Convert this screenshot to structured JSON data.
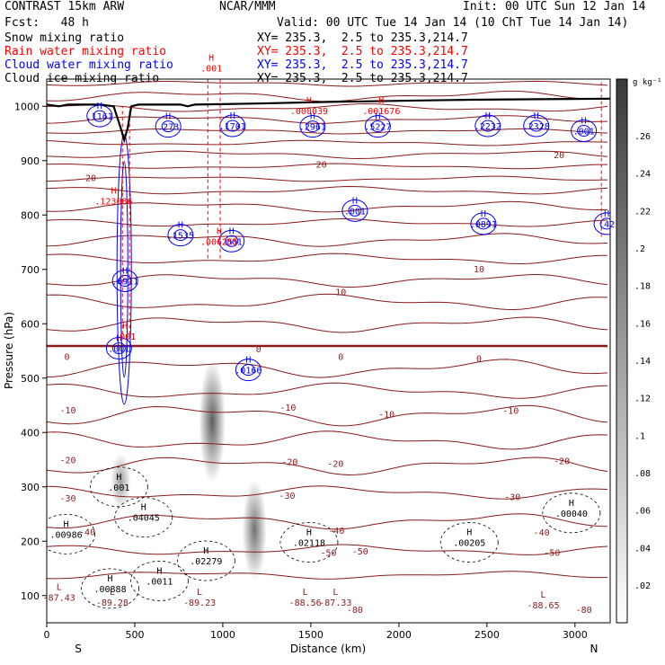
{
  "header": {
    "model": "CONTRAST 15km ARW",
    "center": "NCAR/MMM",
    "init": "Init: 00 UTC Sun 12 Jan 14",
    "fcst": "Fcst:   48 h",
    "valid": "Valid: 00 UTC Tue 14 Jan 14 (10 ChT Tue 14 Jan 14)"
  },
  "fields": [
    {
      "name": "Snow mixing ratio",
      "xy": "XY= 235.3,  2.5 to 235.3,214.7",
      "color": "#000000"
    },
    {
      "name": "Rain water mixing ratio",
      "xy": "XY= 235.3,  2.5 to 235.3,214.7",
      "color": "#ff0000"
    },
    {
      "name": "Cloud water mixing ratio",
      "xy": "XY= 235.3,  2.5 to 235.3,214.7",
      "color": "#0000ff"
    },
    {
      "name": "Cloud ice mixing ratio",
      "xy": "XY= 235.3,  2.5 to 235.3,214.7",
      "color": "#000000"
    }
  ],
  "colorbar": {
    "unit": "g kg⁻¹",
    "ticks": [
      ".26",
      ".24",
      ".22",
      ".2",
      ".18",
      ".16",
      ".14",
      ".12",
      ".1",
      ".08",
      ".06",
      ".04",
      ".02"
    ]
  },
  "chart_data": {
    "type": "heatmap",
    "xlabel": "Distance (km)",
    "ylabel": "Pressure (hPa)",
    "xlim": [
      0,
      3200
    ],
    "ylim": [
      1050,
      50
    ],
    "x_ticks": [
      "0",
      "500",
      "1000",
      "1500",
      "2000",
      "2500",
      "3000"
    ],
    "y_ticks": [
      "100",
      "200",
      "300",
      "400",
      "500",
      "600",
      "700",
      "800",
      "900",
      "1000"
    ],
    "x_end_labels": {
      "left": "S",
      "right": "N"
    },
    "shading_field": "Cloud ice mixing ratio",
    "ice_cells": [
      {
        "x": 1180,
        "p": 220,
        "value": 0.12
      },
      {
        "x": 940,
        "p": 420,
        "value": 0.16
      },
      {
        "x": 420,
        "p": 310,
        "value": 0.04
      }
    ],
    "temperature_labels": [
      {
        "x": 1750,
        "p": 75,
        "value": "-80"
      },
      {
        "x": 3050,
        "p": 75,
        "value": "-80"
      },
      {
        "x": 1600,
        "p": 180,
        "value": "-50"
      },
      {
        "x": 1780,
        "p": 182,
        "value": "-50"
      },
      {
        "x": 2870,
        "p": 180,
        "value": "-50"
      },
      {
        "x": 230,
        "p": 218,
        "value": "-40"
      },
      {
        "x": 1645,
        "p": 220,
        "value": "-40"
      },
      {
        "x": 2810,
        "p": 217,
        "value": "-40"
      },
      {
        "x": 120,
        "p": 280,
        "value": "-30"
      },
      {
        "x": 1365,
        "p": 285,
        "value": "-30"
      },
      {
        "x": 2645,
        "p": 282,
        "value": "-30"
      },
      {
        "x": 120,
        "p": 350,
        "value": "-20"
      },
      {
        "x": 1380,
        "p": 347,
        "value": "-20"
      },
      {
        "x": 1640,
        "p": 343,
        "value": "-20"
      },
      {
        "x": 2925,
        "p": 348,
        "value": "-20"
      },
      {
        "x": 120,
        "p": 442,
        "value": "-10"
      },
      {
        "x": 1370,
        "p": 447,
        "value": "-10"
      },
      {
        "x": 1930,
        "p": 434,
        "value": "-10"
      },
      {
        "x": 2635,
        "p": 441,
        "value": "-10"
      },
      {
        "x": 115,
        "p": 540,
        "value": "0"
      },
      {
        "x": 1203,
        "p": 554,
        "value": "0"
      },
      {
        "x": 1670,
        "p": 540,
        "value": "0"
      },
      {
        "x": 2455,
        "p": 537,
        "value": "0"
      },
      {
        "x": 1670,
        "p": 659,
        "value": "10"
      },
      {
        "x": 2455,
        "p": 701,
        "value": "10"
      },
      {
        "x": 250,
        "p": 869,
        "value": "20"
      },
      {
        "x": 1560,
        "p": 894,
        "value": "20"
      },
      {
        "x": 2910,
        "p": 911,
        "value": "20"
      }
    ],
    "minima": [
      {
        "x": 372,
        "p": 88,
        "value": "-89.28"
      },
      {
        "x": 868,
        "p": 88,
        "value": "-89.23"
      },
      {
        "x": 1468,
        "p": 88,
        "value": "-88.56"
      },
      {
        "x": 1640,
        "p": 88,
        "value": "-87.33"
      },
      {
        "x": 2820,
        "p": 83,
        "value": "-88.65"
      },
      {
        "x": 70,
        "p": 97,
        "value": "-87.43"
      }
    ],
    "snow_maxima": [
      {
        "x": 360,
        "p": 113,
        "value": ".00888"
      },
      {
        "x": 640,
        "p": 127,
        "value": ".0011"
      },
      {
        "x": 905,
        "p": 164,
        "value": ".02279"
      },
      {
        "x": 1490,
        "p": 198,
        "value": ".02118"
      },
      {
        "x": 2400,
        "p": 198,
        "value": ".00205"
      },
      {
        "x": 110,
        "p": 213,
        "value": ".00986"
      },
      {
        "x": 550,
        "p": 244,
        "value": ".04045"
      },
      {
        "x": 2980,
        "p": 252,
        "value": ".00040"
      },
      {
        "x": 410,
        "p": 300,
        "value": ".001"
      }
    ],
    "cloud_water_maxima": [
      {
        "x": 1145,
        "p": 515,
        "value": ".0166"
      },
      {
        "x": 410,
        "p": 555,
        "value": ".001"
      },
      {
        "x": 445,
        "p": 679,
        "value": ".6911"
      },
      {
        "x": 760,
        "p": 763,
        "value": ".1535"
      },
      {
        "x": 1050,
        "p": 752,
        "value": ".001"
      },
      {
        "x": 2480,
        "p": 784,
        "value": ".0891"
      },
      {
        "x": 1750,
        "p": 808,
        "value": ".001"
      },
      {
        "x": 3180,
        "p": 784,
        "value": ".42"
      },
      {
        "x": 300,
        "p": 982,
        "value": ".1161"
      },
      {
        "x": 690,
        "p": 963,
        "value": ".273"
      },
      {
        "x": 1055,
        "p": 964,
        "value": ".1701"
      },
      {
        "x": 1510,
        "p": 963,
        "value": ".2961"
      },
      {
        "x": 1880,
        "p": 963,
        "value": ".5227"
      },
      {
        "x": 2505,
        "p": 964,
        "value": ".2232"
      },
      {
        "x": 2780,
        "p": 964,
        "value": ".2328"
      },
      {
        "x": 3050,
        "p": 955,
        "value": ".001"
      }
    ],
    "rain_maxima": [
      {
        "x": 445,
        "p": 577,
        "value": ".001"
      },
      {
        "x": 980,
        "p": 752,
        "value": ".006255"
      },
      {
        "x": 380,
        "p": 826,
        "value": ".123086"
      },
      {
        "x": 1490,
        "p": 992,
        "value": ".000039"
      },
      {
        "x": 1900,
        "p": 992,
        "value": ".001676"
      },
      {
        "x": 935,
        "p": 1071,
        "value": ".001"
      }
    ],
    "terrain": [
      [
        0,
        1003
      ],
      [
        70,
        1000
      ],
      [
        120,
        1003
      ],
      [
        300,
        1003
      ],
      [
        380,
        1000
      ],
      [
        420,
        960
      ],
      [
        440,
        938
      ],
      [
        460,
        960
      ],
      [
        480,
        1000
      ],
      [
        520,
        1003
      ],
      [
        760,
        1003
      ],
      [
        800,
        1000
      ],
      [
        840,
        1003
      ],
      [
        1200,
        1005
      ],
      [
        1600,
        1008
      ],
      [
        2000,
        1010
      ],
      [
        2400,
        1012
      ],
      [
        2800,
        1013
      ],
      [
        3200,
        1014
      ]
    ]
  }
}
